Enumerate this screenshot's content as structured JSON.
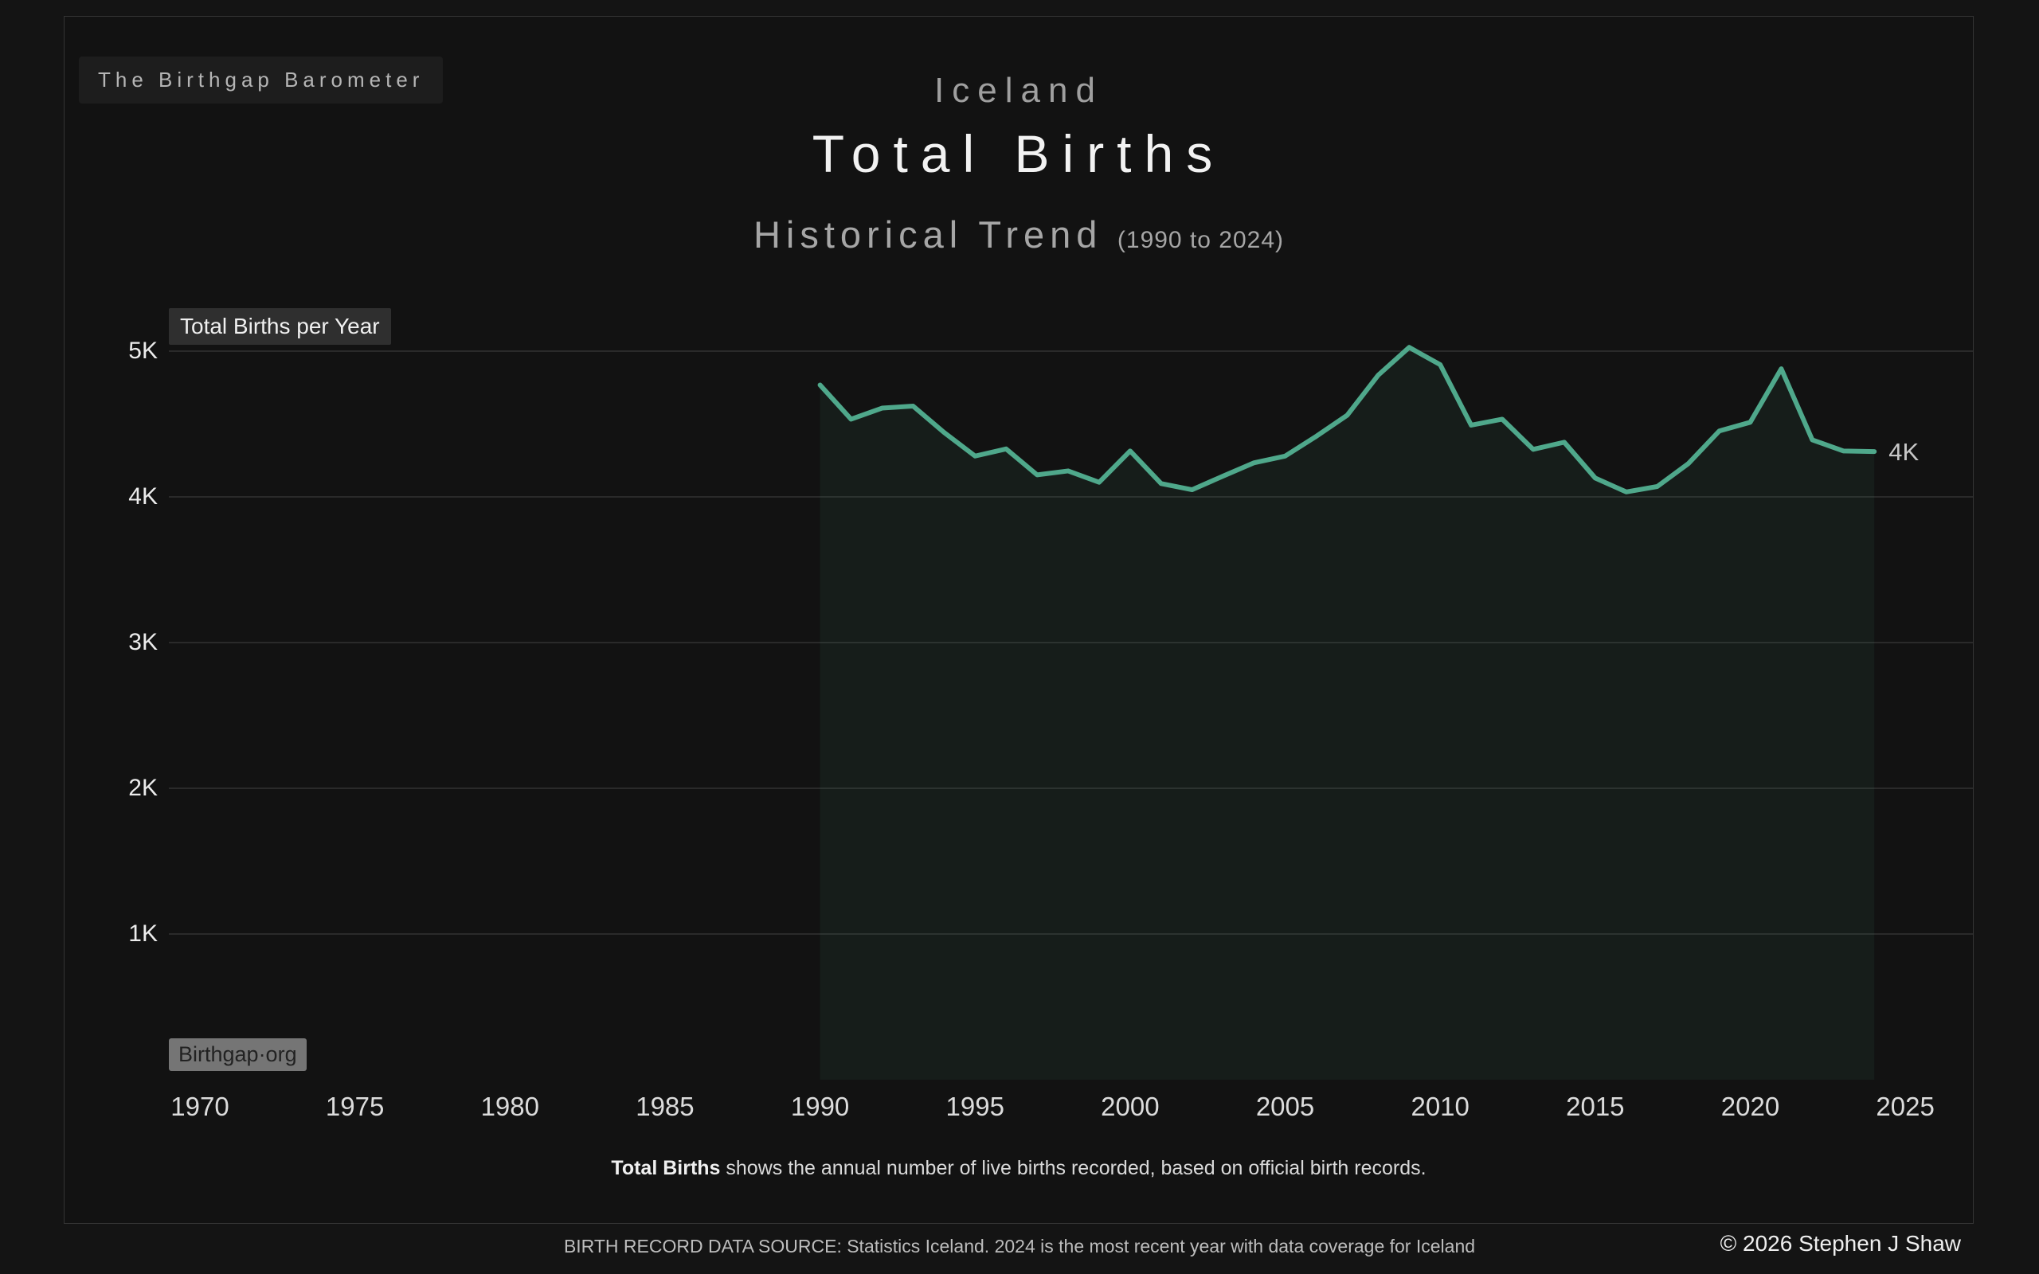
{
  "brand": {
    "label": "The Birthgap Barometer"
  },
  "header": {
    "country": "Iceland",
    "title": "Total Births",
    "subtitle": "Historical Trend",
    "subtitle_note": "(1990 to 2024)"
  },
  "chart": {
    "series_label": "Total Births per Year",
    "watermark": "Birthgap·org",
    "line_color": "#4fa88b",
    "area_color": "rgba(79,168,139,0.075)",
    "grid_color": "#2a2a2a",
    "end_label_color": "#c6c6c6"
  },
  "chart_data": {
    "type": "area",
    "title": "Iceland Total Births Historical Trend (1990 to 2024)",
    "x": [
      1990,
      1991,
      1992,
      1993,
      1994,
      1995,
      1996,
      1997,
      1998,
      1999,
      2000,
      2001,
      2002,
      2003,
      2004,
      2005,
      2006,
      2007,
      2008,
      2009,
      2010,
      2011,
      2012,
      2013,
      2014,
      2015,
      2016,
      2017,
      2018,
      2019,
      2020,
      2021,
      2022,
      2023,
      2024
    ],
    "values": [
      4768,
      4533,
      4609,
      4623,
      4442,
      4280,
      4329,
      4151,
      4178,
      4100,
      4315,
      4091,
      4049,
      4143,
      4234,
      4280,
      4415,
      4560,
      4835,
      5026,
      4907,
      4492,
      4533,
      4326,
      4375,
      4129,
      4034,
      4071,
      4228,
      4452,
      4512,
      4879,
      4391,
      4315,
      4311
    ],
    "xlabel": "",
    "ylabel": "Total Births per Year",
    "xlim": [
      1970,
      2025
    ],
    "ylim": [
      0,
      5200
    ],
    "x_ticks": [
      1970,
      1975,
      1980,
      1985,
      1990,
      1995,
      2000,
      2005,
      2010,
      2015,
      2020,
      2025
    ],
    "y_ticks": [
      {
        "v": 5000,
        "label": "5K"
      },
      {
        "v": 4000,
        "label": "4K"
      },
      {
        "v": 3000,
        "label": "3K"
      },
      {
        "v": 2000,
        "label": "2K"
      },
      {
        "v": 1000,
        "label": "1K"
      }
    ],
    "end_value_label": "4K",
    "grid": "horizontal",
    "legend": "none"
  },
  "caption": {
    "bold": "Total Births",
    "rest": " shows the annual number of live births recorded, based on official birth records."
  },
  "footer": {
    "source": "BIRTH RECORD DATA SOURCE: Statistics Iceland. 2024 is the most recent year with data coverage for Iceland",
    "copyright": "© 2026 Stephen J Shaw"
  }
}
